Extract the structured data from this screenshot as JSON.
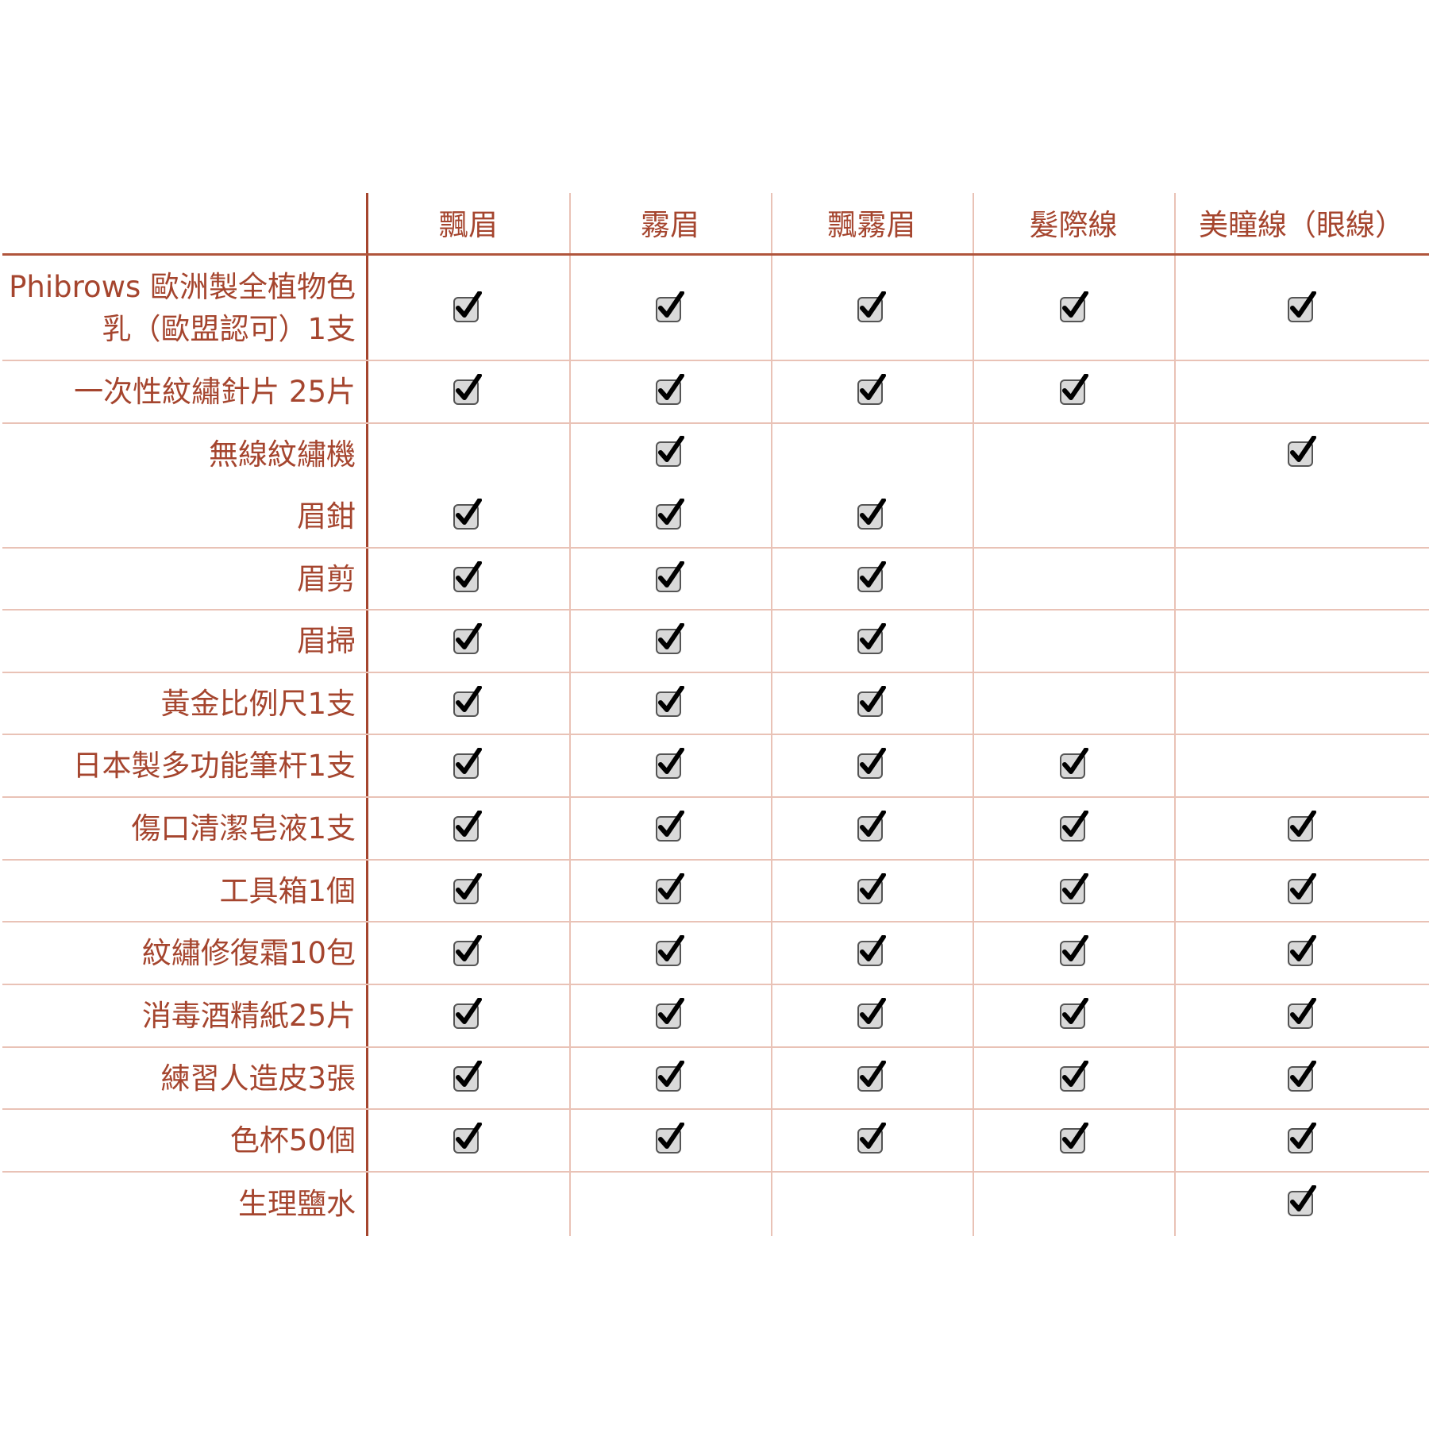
{
  "colors": {
    "text": "#a5452e",
    "grid_light": "#e9c2b6",
    "grid_main": "#a5452e",
    "check_box": "#d9d9d9",
    "check_mark": "#000000"
  },
  "columns": [
    "飄眉",
    "霧眉",
    "飄霧眉",
    "髮際線",
    "美瞳線（眼線）"
  ],
  "check_icon": "checkbox-checked-icon",
  "rows": [
    {
      "label": "Phibrows 歐洲製全植物色乳（歐盟認可）1支",
      "checks": [
        true,
        true,
        true,
        true,
        true
      ]
    },
    {
      "label": "一次性紋繡針片 25片",
      "checks": [
        true,
        true,
        true,
        true,
        false
      ]
    },
    {
      "label": "無線紋繡機",
      "checks": [
        false,
        true,
        false,
        false,
        true
      ]
    },
    {
      "label": "眉鉗",
      "checks": [
        true,
        true,
        true,
        false,
        false
      ]
    },
    {
      "label": "眉剪",
      "checks": [
        true,
        true,
        true,
        false,
        false
      ]
    },
    {
      "label": "眉掃",
      "checks": [
        true,
        true,
        true,
        false,
        false
      ]
    },
    {
      "label": "黃金比例尺1支",
      "checks": [
        true,
        true,
        true,
        false,
        false
      ]
    },
    {
      "label": "日本製多功能筆杆1支",
      "checks": [
        true,
        true,
        true,
        true,
        false
      ]
    },
    {
      "label": "傷口清潔皂液1支",
      "checks": [
        true,
        true,
        true,
        true,
        true
      ]
    },
    {
      "label": "工具箱1個",
      "checks": [
        true,
        true,
        true,
        true,
        true
      ]
    },
    {
      "label": "紋繡修復霜10包",
      "checks": [
        true,
        true,
        true,
        true,
        true
      ]
    },
    {
      "label": "消毒酒精紙25片",
      "checks": [
        true,
        true,
        true,
        true,
        true
      ]
    },
    {
      "label": "練習人造皮3張",
      "checks": [
        true,
        true,
        true,
        true,
        true
      ]
    },
    {
      "label": "色杯50個",
      "checks": [
        true,
        true,
        true,
        true,
        true
      ]
    },
    {
      "label": "生理鹽水",
      "checks": [
        false,
        false,
        false,
        false,
        true
      ]
    }
  ]
}
